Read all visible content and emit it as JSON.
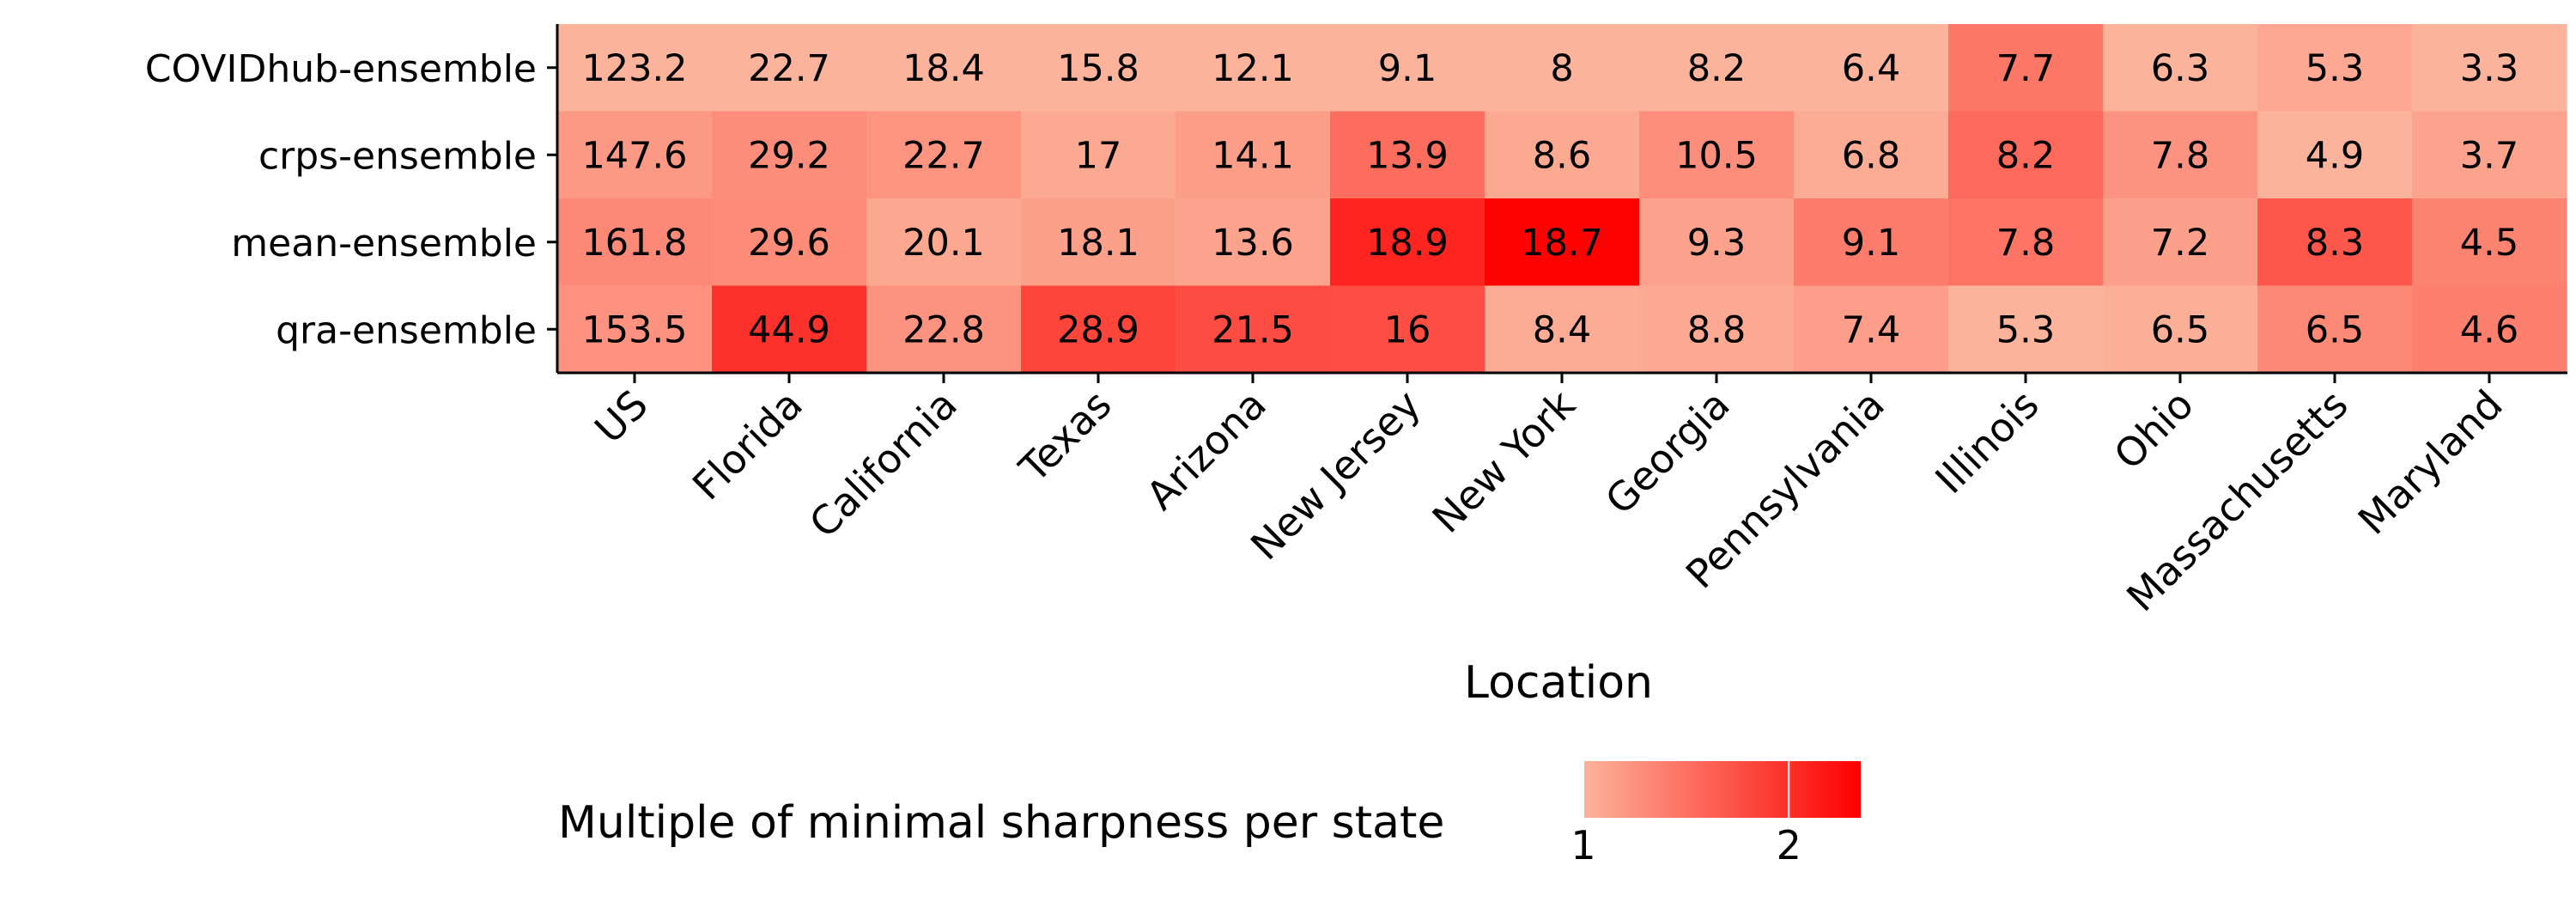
{
  "chart_data": {
    "type": "heatmap",
    "xlabel": "Location",
    "ylabel": "",
    "x": [
      "US",
      "Florida",
      "California",
      "Texas",
      "Arizona",
      "New Jersey",
      "New York",
      "Georgia",
      "Pennsylvania",
      "Illinois",
      "Ohio",
      "Massachusetts",
      "Maryland"
    ],
    "y": [
      "COVIDhub-ensemble",
      "crps-ensemble",
      "mean-ensemble",
      "qra-ensemble"
    ],
    "values": [
      [
        "123.2",
        "22.7",
        "18.4",
        "15.8",
        "12.1",
        "9.1",
        "8",
        "8.2",
        "6.4",
        "7.7",
        "6.3",
        "5.3",
        "3.3"
      ],
      [
        "147.6",
        "29.2",
        "22.7",
        "17",
        "14.1",
        "13.9",
        "8.6",
        "10.5",
        "6.8",
        "8.2",
        "7.8",
        "4.9",
        "3.7"
      ],
      [
        "161.8",
        "29.6",
        "20.1",
        "18.1",
        "13.6",
        "18.9",
        "18.7",
        "9.3",
        "9.1",
        "7.8",
        "7.2",
        "8.3",
        "4.5"
      ],
      [
        "153.5",
        "44.9",
        "22.8",
        "28.9",
        "21.5",
        "16",
        "8.4",
        "8.8",
        "7.4",
        "5.3",
        "6.5",
        "6.5",
        "4.6"
      ]
    ],
    "legend": {
      "title": "Multiple of minimal sharpness per state",
      "ticks": [
        "1",
        "2"
      ],
      "range": [
        1,
        2.35
      ],
      "placement": "bottom",
      "color_low": "#fcb39b",
      "color_high": "#fe0000"
    }
  }
}
